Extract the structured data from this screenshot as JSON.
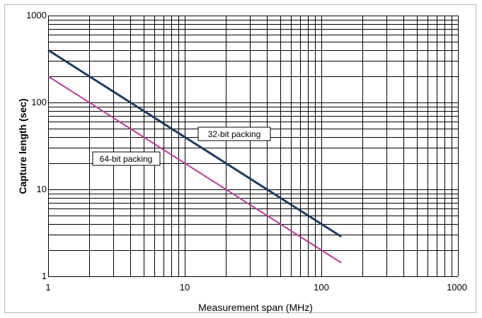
{
  "chart_data": {
    "type": "line",
    "x_scale": "log",
    "y_scale": "log",
    "xlim": [
      1,
      1000
    ],
    "ylim": [
      1,
      1000
    ],
    "xlabel": "Measurement span (MHz)",
    "ylabel": "Capture length (sec)",
    "grid": true,
    "x_tick_labels": [
      "1",
      "10",
      "100",
      "1000"
    ],
    "y_tick_labels": [
      "1",
      "10",
      "100",
      "1000"
    ],
    "series": [
      {
        "name": "32-bit packing",
        "color": "#1b3a64",
        "x": [
          1,
          140
        ],
        "y": [
          400,
          2.86
        ]
      },
      {
        "name": "64-bit packing",
        "color": "#c0389a",
        "x": [
          1,
          140
        ],
        "y": [
          200,
          1.43
        ]
      }
    ],
    "annotations": [
      {
        "text": "32-bit packing",
        "series": "32-bit packing"
      },
      {
        "text": "64-bit packing",
        "series": "64-bit packing"
      }
    ]
  }
}
